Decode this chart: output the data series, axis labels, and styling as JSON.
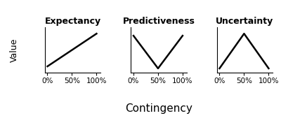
{
  "panels": [
    {
      "title": "Expectancy",
      "x": [
        0,
        100
      ],
      "y": [
        0.1,
        0.9
      ]
    },
    {
      "title": "Predictiveness",
      "x": [
        0,
        50,
        100
      ],
      "y": [
        0.85,
        0.05,
        0.85
      ]
    },
    {
      "title": "Uncertainty",
      "x": [
        0,
        50,
        100
      ],
      "y": [
        0.05,
        0.9,
        0.05
      ]
    }
  ],
  "xticks": [
    0,
    50,
    100
  ],
  "xticklabels": [
    "0%",
    "50%",
    "100%"
  ],
  "ylabel": "Value",
  "xlabel": "Contingency",
  "line_color": "#000000",
  "line_width": 1.8,
  "title_fontsize": 9,
  "label_fontsize": 9,
  "tick_fontsize": 7.5,
  "xlabel_fontsize": 11,
  "background_color": "#ffffff"
}
